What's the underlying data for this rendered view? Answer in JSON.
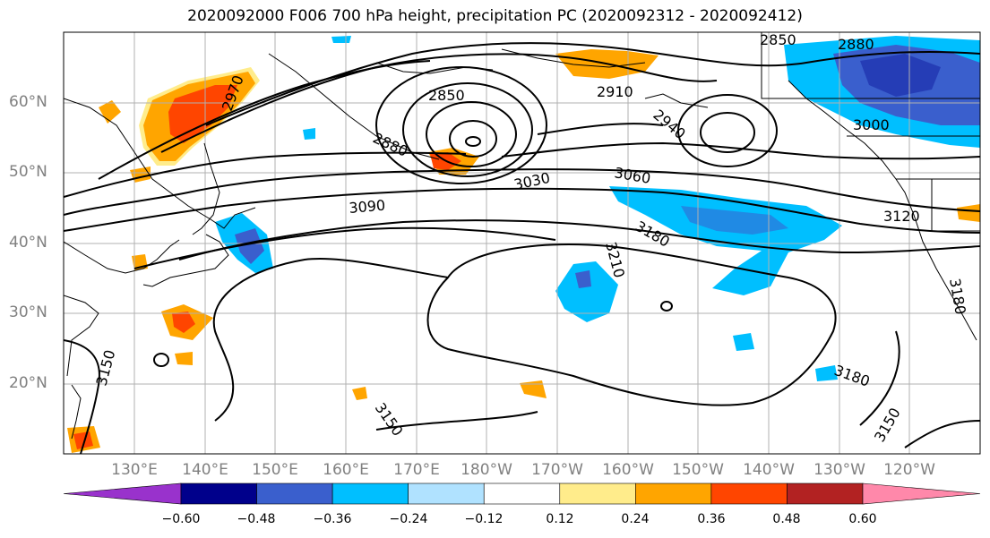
{
  "title": "2020092000 F006 700 hPa height, precipitation PC (2020092312 - 2020092412)",
  "lat_labels": [
    "60°N",
    "50°N",
    "40°N",
    "30°N",
    "20°N"
  ],
  "lon_labels": [
    "130°E",
    "140°E",
    "150°E",
    "160°E",
    "170°E",
    "180°W",
    "170°W",
    "160°W",
    "150°W",
    "140°W",
    "130°W",
    "120°W"
  ],
  "contour_labels": [
    "2850",
    "2880",
    "2850",
    "2880",
    "2910",
    "2940",
    "2970",
    "3000",
    "3030",
    "3060",
    "3090",
    "3120",
    "3150",
    "3150",
    "3150",
    "3180",
    "3180",
    "3180",
    "3210"
  ],
  "colorbar": {
    "ticks": [
      "−0.60",
      "−0.48",
      "−0.36",
      "−0.24",
      "−0.12",
      "0.12",
      "0.24",
      "0.36",
      "0.48",
      "0.60"
    ],
    "colors": [
      "#9932cc",
      "#00008b",
      "#3a5fcd",
      "#00bfff",
      "#b0e2ff",
      "#ffffff",
      "#ffec8b",
      "#ffa500",
      "#ff4500",
      "#b22222",
      "#ff88aa"
    ]
  }
}
